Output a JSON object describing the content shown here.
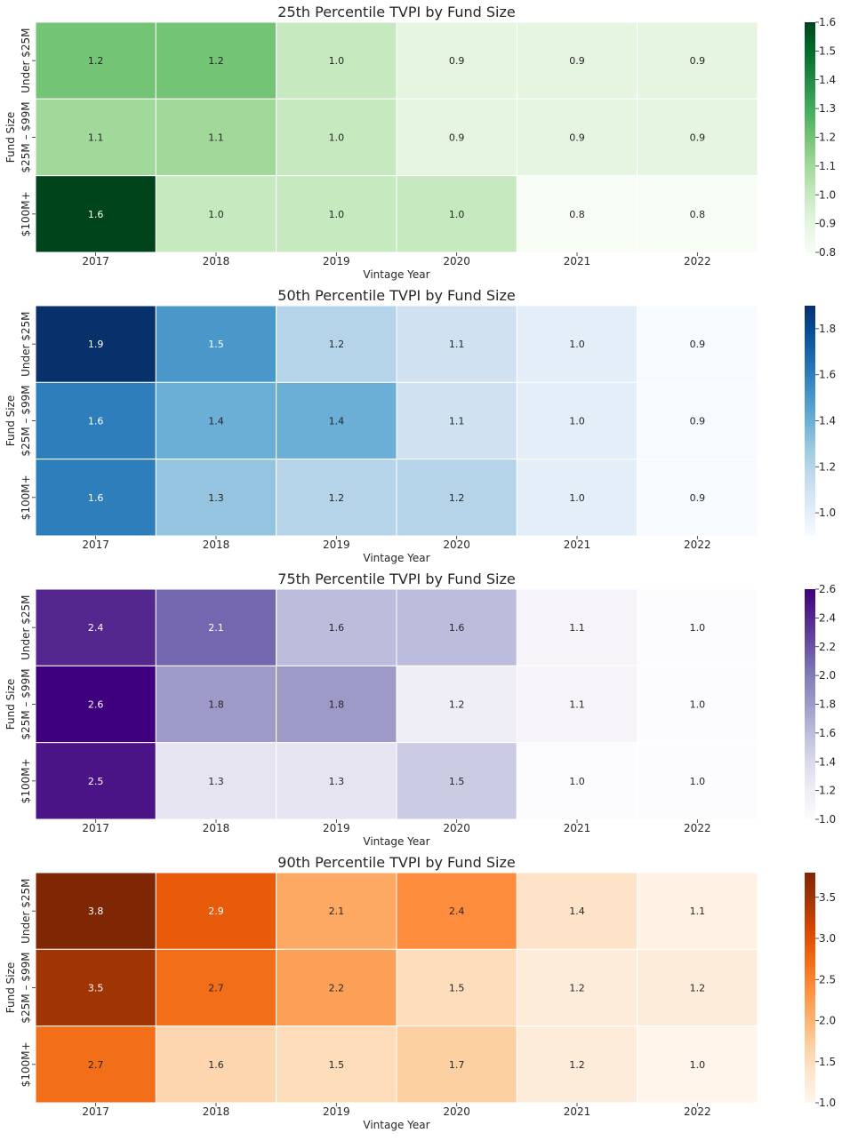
{
  "chart_data": [
    {
      "type": "heatmap",
      "title": "25th Percentile TVPI by Fund Size",
      "xlabel": "Vintage Year",
      "ylabel": "Fund Size",
      "x_categories": [
        "2017",
        "2018",
        "2019",
        "2020",
        "2021",
        "2022"
      ],
      "y_categories": [
        "Under $25M",
        "$25M – $99M",
        "$100M+"
      ],
      "values": [
        [
          1.2,
          1.2,
          1.0,
          0.9,
          0.9,
          0.9
        ],
        [
          1.1,
          1.1,
          1.0,
          0.9,
          0.9,
          0.9
        ],
        [
          1.6,
          1.0,
          1.0,
          1.0,
          0.8,
          0.8
        ]
      ],
      "colorbar_range": [
        0.8,
        1.6
      ],
      "colorbar_ticks": [
        "0.8",
        "0.9",
        "1.0",
        "1.1",
        "1.2",
        "1.3",
        "1.4",
        "1.5",
        "1.6"
      ],
      "colormap": "Greens",
      "colormap_stops": [
        "#f7fcf5",
        "#e5f5e0",
        "#c7e9c0",
        "#a1d99b",
        "#74c476",
        "#41ab5d",
        "#238b45",
        "#006d2c",
        "#00441b"
      ]
    },
    {
      "type": "heatmap",
      "title": "50th Percentile TVPI by Fund Size",
      "xlabel": "Vintage Year",
      "ylabel": "Fund Size",
      "x_categories": [
        "2017",
        "2018",
        "2019",
        "2020",
        "2021",
        "2022"
      ],
      "y_categories": [
        "Under $25M",
        "$25M – $99M",
        "$100M+"
      ],
      "values": [
        [
          1.9,
          1.5,
          1.2,
          1.1,
          1.0,
          0.9
        ],
        [
          1.6,
          1.4,
          1.4,
          1.1,
          1.0,
          0.9
        ],
        [
          1.6,
          1.3,
          1.2,
          1.2,
          1.0,
          0.9
        ]
      ],
      "colorbar_range": [
        0.9,
        1.9
      ],
      "colorbar_ticks": [
        "1.0",
        "1.2",
        "1.4",
        "1.6",
        "1.8"
      ],
      "colormap": "Blues",
      "colormap_stops": [
        "#f7fbff",
        "#deebf7",
        "#c6dbef",
        "#9ecae1",
        "#6baed6",
        "#4292c6",
        "#2171b5",
        "#08519c",
        "#08306b"
      ]
    },
    {
      "type": "heatmap",
      "title": "75th Percentile TVPI by Fund Size",
      "xlabel": "Vintage Year",
      "ylabel": "Fund Size",
      "x_categories": [
        "2017",
        "2018",
        "2019",
        "2020",
        "2021",
        "2022"
      ],
      "y_categories": [
        "Under $25M",
        "$25M – $99M",
        "$100M+"
      ],
      "values": [
        [
          2.4,
          2.1,
          1.6,
          1.6,
          1.1,
          1.0
        ],
        [
          2.6,
          1.8,
          1.8,
          1.2,
          1.1,
          1.0
        ],
        [
          2.5,
          1.3,
          1.3,
          1.5,
          1.0,
          1.0
        ]
      ],
      "colorbar_range": [
        1.0,
        2.6
      ],
      "colorbar_ticks": [
        "1.0",
        "1.2",
        "1.4",
        "1.6",
        "1.8",
        "2.0",
        "2.2",
        "2.4",
        "2.6"
      ],
      "colormap": "Purples",
      "colormap_stops": [
        "#fcfbfd",
        "#efedf5",
        "#dadaeb",
        "#bcbddc",
        "#9e9ac8",
        "#807dba",
        "#6a51a3",
        "#54278f",
        "#3f007d"
      ]
    },
    {
      "type": "heatmap",
      "title": "90th Percentile TVPI by Fund Size",
      "xlabel": "Vintage Year",
      "ylabel": "Fund Size",
      "x_categories": [
        "2017",
        "2018",
        "2019",
        "2020",
        "2021",
        "2022"
      ],
      "y_categories": [
        "Under $25M",
        "$25M – $99M",
        "$100M+"
      ],
      "values": [
        [
          3.8,
          2.9,
          2.1,
          2.4,
          1.4,
          1.1
        ],
        [
          3.5,
          2.7,
          2.2,
          1.5,
          1.2,
          1.2
        ],
        [
          2.7,
          1.6,
          1.5,
          1.7,
          1.2,
          1.0
        ]
      ],
      "colorbar_range": [
        1.0,
        3.8
      ],
      "colorbar_ticks": [
        "1.0",
        "1.5",
        "2.0",
        "2.5",
        "3.0",
        "3.5"
      ],
      "colormap": "Oranges",
      "colormap_stops": [
        "#fff5eb",
        "#fee6ce",
        "#fdd0a2",
        "#fdae6b",
        "#fd8d3c",
        "#f16913",
        "#d94801",
        "#a63603",
        "#7f2704"
      ]
    }
  ]
}
